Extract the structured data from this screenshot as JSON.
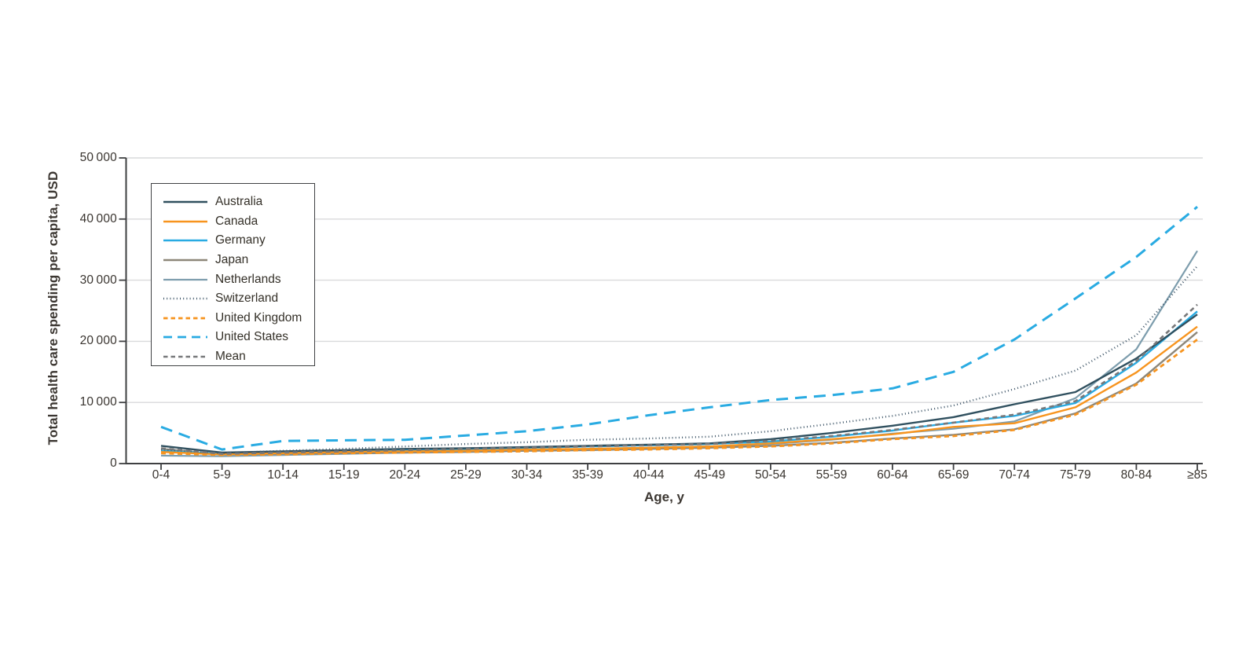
{
  "figure": {
    "background": "#ffffff",
    "text_color": "#3a3530",
    "axis_color": "#3f4042",
    "grid_color": "#d9dadb",
    "y_axis": {
      "title": "Total health care spending per capita, USD",
      "tick_labels": [
        "0",
        "10 000",
        "20 000",
        "30 000",
        "40 000",
        "50 000"
      ],
      "tick_values": [
        0,
        10000,
        20000,
        30000,
        40000,
        50000
      ]
    },
    "x_axis": {
      "title": "Age, y"
    }
  },
  "legend": {
    "position": "upper-left",
    "order": [
      "Australia",
      "Canada",
      "Germany",
      "Japan",
      "Netherlands",
      "Switzerland",
      "United Kingdom",
      "United States",
      "Mean"
    ]
  },
  "chart_data": {
    "type": "line",
    "title": "",
    "xlabel": "Age, y",
    "ylabel": "Total health care spending per capita, USD",
    "ylim": [
      0,
      50000
    ],
    "grid": "horizontal",
    "legend_position": "upper left",
    "categories": [
      "0-4",
      "5-9",
      "10-14",
      "15-19",
      "20-24",
      "25-29",
      "30-34",
      "35-39",
      "40-44",
      "45-49",
      "50-54",
      "55-59",
      "60-64",
      "65-69",
      "70-74",
      "75-79",
      "80-84",
      "≥85"
    ],
    "series": [
      {
        "name": "Australia",
        "color": "#30505f",
        "line": "solid",
        "width": 2.4,
        "values": [
          2900,
          1800,
          2000,
          2200,
          2400,
          2500,
          2700,
          2900,
          3100,
          3300,
          4000,
          5000,
          6200,
          7600,
          9700,
          11700,
          17200,
          24400
        ]
      },
      {
        "name": "Canada",
        "color": "#f7941e",
        "line": "solid",
        "width": 2.4,
        "values": [
          1900,
          1500,
          1700,
          1900,
          2000,
          2100,
          2300,
          2400,
          2600,
          2800,
          3300,
          4000,
          4800,
          6000,
          6600,
          9200,
          14900,
          22400
        ]
      },
      {
        "name": "Germany",
        "color": "#29abe2",
        "line": "solid",
        "width": 2.4,
        "values": [
          2100,
          1600,
          1800,
          2000,
          2200,
          2400,
          2600,
          2800,
          3000,
          3200,
          3600,
          4400,
          5400,
          6700,
          7800,
          9900,
          16500,
          24900
        ]
      },
      {
        "name": "Japan",
        "color": "#8d8779",
        "line": "solid",
        "width": 2.4,
        "values": [
          2400,
          1500,
          1600,
          1700,
          1800,
          1900,
          2100,
          2200,
          2400,
          2600,
          2900,
          3400,
          4100,
          4700,
          5600,
          8200,
          13100,
          21500
        ]
      },
      {
        "name": "Netherlands",
        "color": "#7d9dad",
        "line": "solid",
        "width": 2.2,
        "values": [
          1300,
          1200,
          1400,
          1600,
          1800,
          2000,
          2200,
          2400,
          2600,
          2800,
          3200,
          3900,
          4900,
          5700,
          6900,
          10700,
          18700,
          34800
        ]
      },
      {
        "name": "Switzerland",
        "color": "#41586a",
        "line": "dot",
        "width": 2.4,
        "values": [
          2300,
          1700,
          2100,
          2400,
          2800,
          3200,
          3500,
          3900,
          4100,
          4400,
          5300,
          6500,
          7800,
          9500,
          12200,
          15200,
          21000,
          32300
        ]
      },
      {
        "name": "United Kingdom",
        "color": "#f7941e",
        "line": "dash",
        "width": 2.8,
        "values": [
          1700,
          1400,
          1500,
          1700,
          1800,
          1900,
          2000,
          2200,
          2300,
          2500,
          2800,
          3300,
          4000,
          4500,
          5500,
          8000,
          12900,
          20300
        ]
      },
      {
        "name": "United States",
        "color": "#29abe2",
        "line": "longdash",
        "width": 3,
        "values": [
          6000,
          2300,
          3700,
          3800,
          3900,
          4600,
          5300,
          6400,
          7900,
          9200,
          10400,
          11200,
          12300,
          15000,
          20300,
          27000,
          33800,
          42000
        ]
      },
      {
        "name": "Mean",
        "color": "#77787a",
        "line": "dash",
        "width": 2.6,
        "values": [
          2500,
          1600,
          1800,
          2000,
          2200,
          2400,
          2600,
          2800,
          3000,
          3200,
          3700,
          4500,
          5500,
          6700,
          8000,
          10200,
          16800,
          26000
        ]
      }
    ],
    "draw_order": [
      "Netherlands",
      "Japan",
      "Germany",
      "Canada",
      "Australia",
      "Switzerland",
      "United Kingdom",
      "Mean",
      "United States"
    ]
  }
}
